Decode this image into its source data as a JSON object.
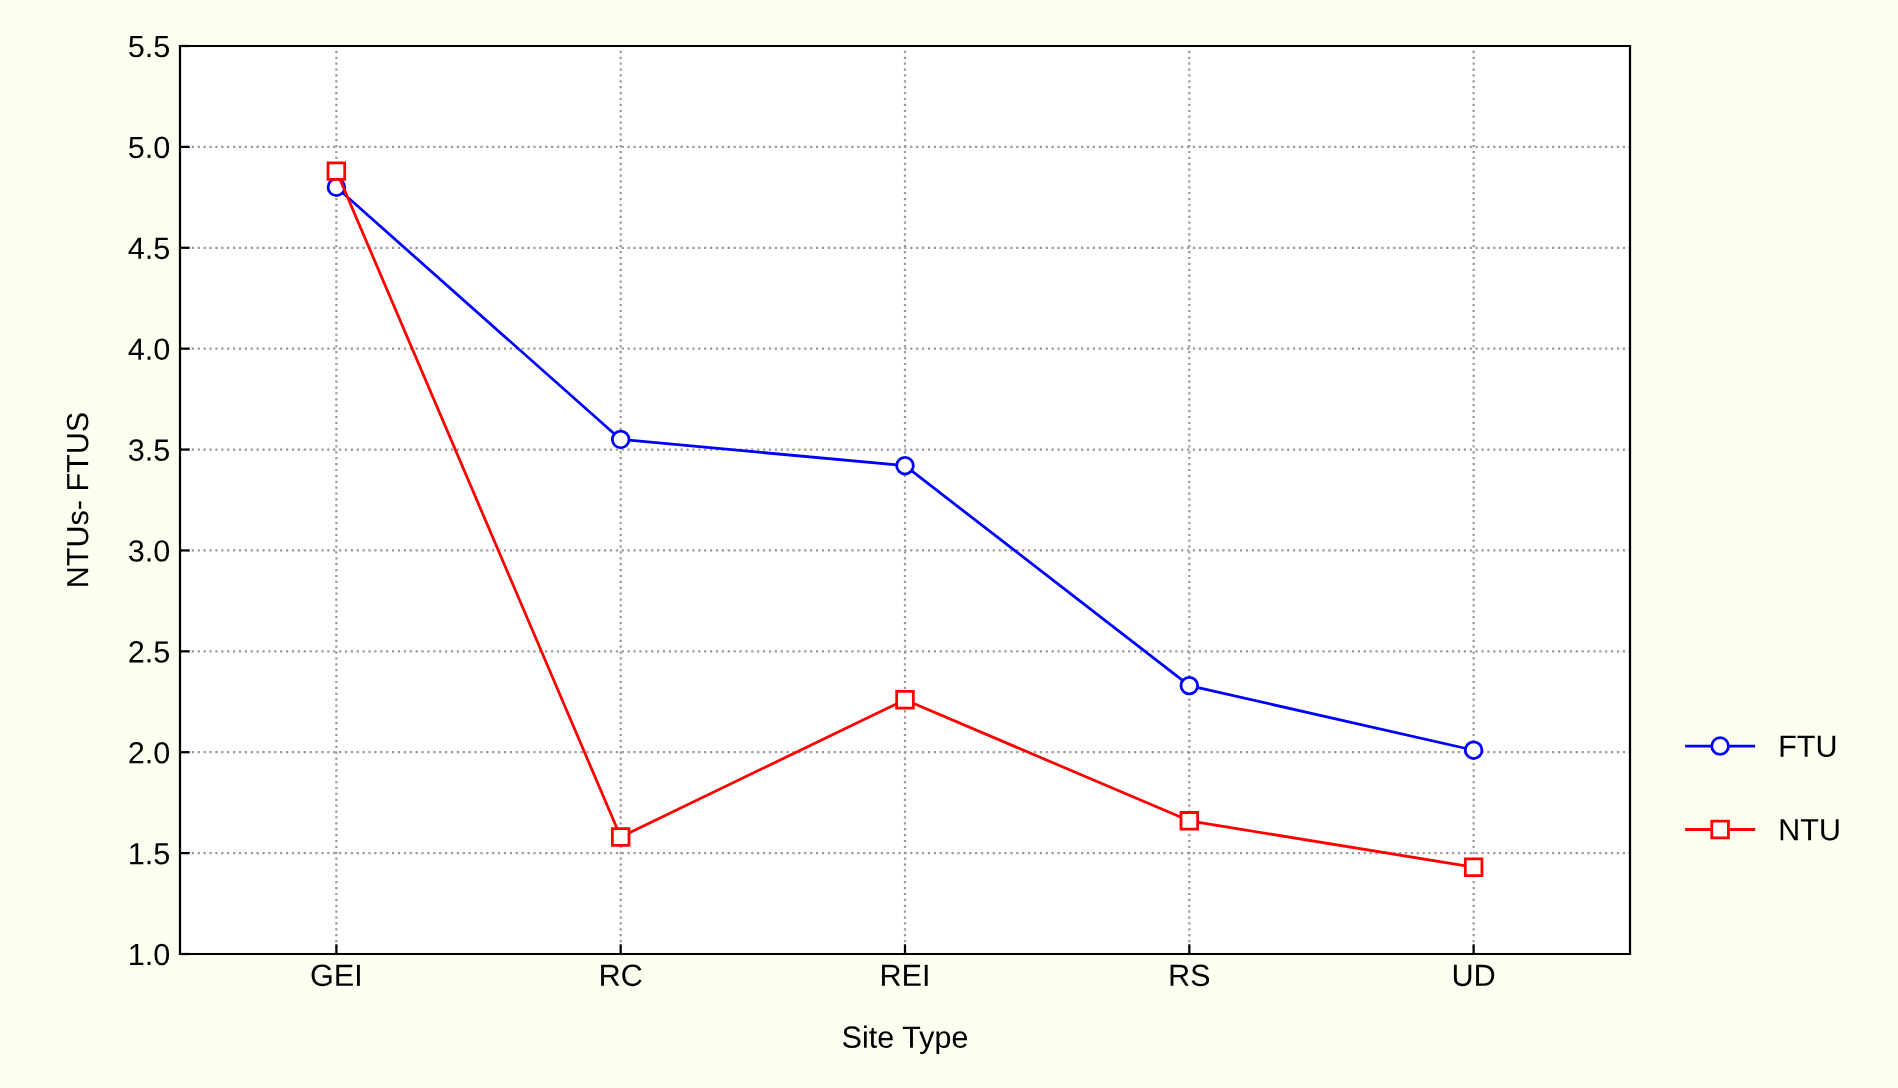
{
  "chart_data": {
    "type": "line",
    "xlabel": "Site Type",
    "ylabel": "NTUs- FTUS",
    "categories": [
      "GEI",
      "RC",
      "REI",
      "RS",
      "UD"
    ],
    "series": [
      {
        "name": "FTU",
        "color": "#0000ff",
        "marker": "circle",
        "values": [
          4.8,
          3.55,
          3.42,
          2.33,
          2.01
        ]
      },
      {
        "name": "NTU",
        "color": "#ff0000",
        "marker": "square",
        "values": [
          4.88,
          1.58,
          2.26,
          1.66,
          1.43
        ]
      }
    ],
    "ylim": [
      1.0,
      5.5
    ],
    "yticks": [
      {
        "value": 1.0,
        "label": "1.0"
      },
      {
        "value": 1.5,
        "label": "1.5"
      },
      {
        "value": 2.0,
        "label": "2.0"
      },
      {
        "value": 2.5,
        "label": "2.5"
      },
      {
        "value": 3.0,
        "label": "3.0"
      },
      {
        "value": 3.5,
        "label": "3.5"
      },
      {
        "value": 4.0,
        "label": "4.0"
      },
      {
        "value": 4.5,
        "label": "4.5"
      },
      {
        "value": 5.0,
        "label": "5.0"
      },
      {
        "value": 5.5,
        "label": "5.5"
      }
    ],
    "grid": true,
    "legend": "right",
    "line_style": "solid"
  }
}
